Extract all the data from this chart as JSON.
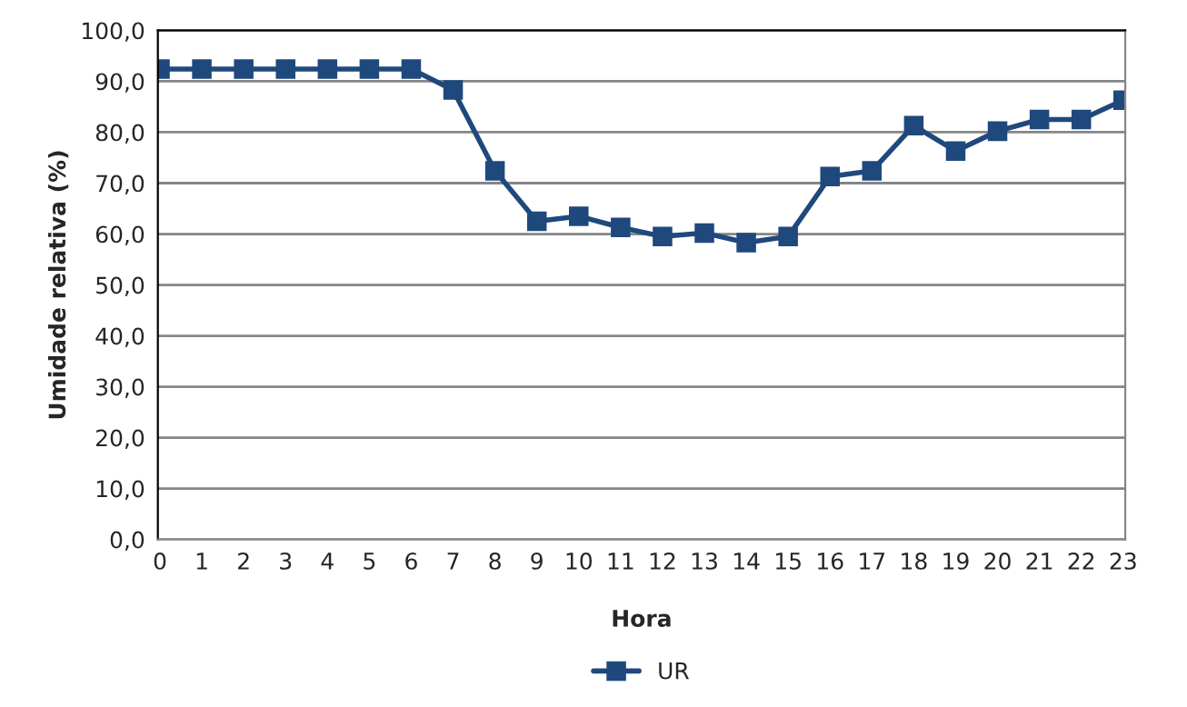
{
  "chart_data": {
    "type": "line",
    "xlabel": "Hora",
    "ylabel": "Umidade relativa (%)",
    "categories": [
      "0",
      "1",
      "2",
      "3",
      "4",
      "5",
      "6",
      "7",
      "8",
      "9",
      "10",
      "11",
      "12",
      "13",
      "14",
      "15",
      "16",
      "17",
      "18",
      "19",
      "20",
      "21",
      "22",
      "23"
    ],
    "series": [
      {
        "name": "UR",
        "color": "#1f497d",
        "values": [
          92.4,
          92.4,
          92.4,
          92.4,
          92.4,
          92.4,
          92.4,
          88.3,
          72.4,
          62.5,
          63.5,
          61.3,
          59.5,
          60.2,
          58.3,
          59.5,
          71.3,
          72.4,
          81.3,
          76.3,
          80.2,
          82.5,
          82.5,
          86.3
        ]
      }
    ],
    "ylim": [
      0,
      100
    ],
    "yticks": [
      {
        "value": 0,
        "label": "0,0"
      },
      {
        "value": 10,
        "label": "10,0"
      },
      {
        "value": 20,
        "label": "20,0"
      },
      {
        "value": 30,
        "label": "30,0"
      },
      {
        "value": 40,
        "label": "40,0"
      },
      {
        "value": 50,
        "label": "50,0"
      },
      {
        "value": 60,
        "label": "60,0"
      },
      {
        "value": 70,
        "label": "70,0"
      },
      {
        "value": 80,
        "label": "80,0"
      },
      {
        "value": 90,
        "label": "90,0"
      },
      {
        "value": 100,
        "label": "100,0"
      }
    ],
    "grid": "y",
    "legend": "bottom",
    "marker": "square",
    "line_style": "solid"
  }
}
